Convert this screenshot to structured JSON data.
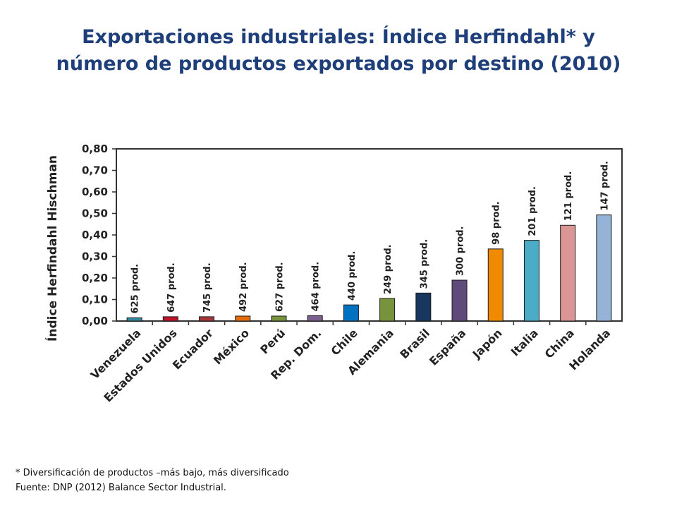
{
  "chart_data": {
    "type": "bar",
    "title": "Exportaciones industriales: Índice Herfindahl* y número de productos exportados por destino (2010)",
    "ylabel": "Índice Herfindahl Hischman",
    "ylim": [
      0,
      0.8
    ],
    "yticks": [
      "0,00",
      "0,10",
      "0,20",
      "0,30",
      "0,40",
      "0,50",
      "0,60",
      "0,70",
      "0,80"
    ],
    "grid": false,
    "categories": [
      "Venezuela",
      "Estados Unidos",
      "Ecuador",
      "México",
      "Perú",
      "Rep. Dom.",
      "Chile",
      "Alemania",
      "Brasil",
      "España",
      "Japón",
      "Italia",
      "China",
      "Holanda"
    ],
    "values": [
      0.015,
      0.02,
      0.02,
      0.023,
      0.023,
      0.025,
      0.075,
      0.105,
      0.13,
      0.19,
      0.335,
      0.375,
      0.445,
      0.493
    ],
    "data_labels": [
      "625 prod.",
      "647 prod.",
      "745 prod.",
      "492 prod.",
      "627 prod.",
      "464 prod.",
      "440 prod.",
      "249 prod.",
      "345 prod.",
      "300 prod.",
      "98 prod.",
      "201 prod.",
      "121 prod.",
      "147 prod."
    ],
    "colors": [
      "#31859c",
      "#c0142a",
      "#a6373a",
      "#e46c0a",
      "#77933c",
      "#7b5f8e",
      "#0070c0",
      "#77933c",
      "#17375e",
      "#604a7b",
      "#f08a00",
      "#4bacc6",
      "#d99694",
      "#95b3d7"
    ]
  },
  "footnotes": {
    "note": "* Diversificación de productos –más bajo, más diversificado",
    "source": "Fuente: DNP (2012) Balance Sector Industrial."
  }
}
